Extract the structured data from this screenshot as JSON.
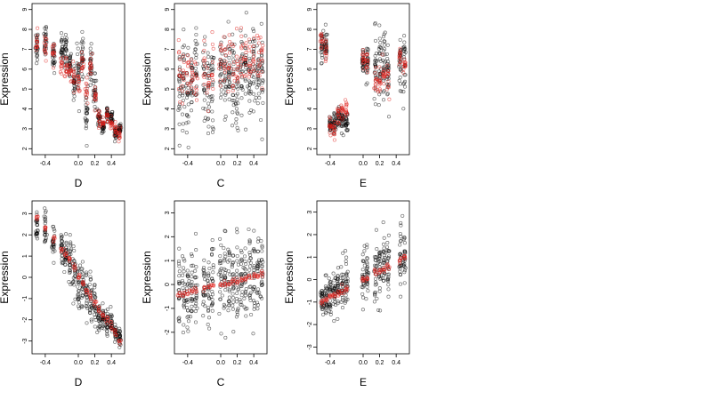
{
  "chart_data": [
    {
      "type": "scatter",
      "xlabel": "D",
      "ylabel": "Expression",
      "xlim": [
        -0.56,
        0.56
      ],
      "ylim": [
        1.7,
        9.3
      ],
      "xticks": [
        -0.4,
        0.0,
        0.2,
        0.4
      ],
      "yticks": [
        2,
        3,
        4,
        5,
        6,
        7,
        8,
        9
      ],
      "xcats": [
        -0.5,
        -0.4,
        -0.3,
        -0.2,
        -0.15,
        -0.1,
        -0.05,
        0.0,
        0.05,
        0.1,
        0.15,
        0.2,
        0.25,
        0.3,
        0.35,
        0.4,
        0.45,
        0.5
      ],
      "series": [
        {
          "color": "#000000",
          "y": [
            7.2,
            7.5,
            6.6,
            7.0,
            6.9,
            6.1,
            5.4,
            5.8,
            6.5,
            3.9,
            6.3,
            4.9,
            3.5,
            3.1,
            3.8,
            3.5,
            2.8,
            3.0
          ],
          "spread": [
            0.8,
            0.7,
            0.7,
            0.7,
            0.8,
            0.8,
            0.8,
            1.0,
            0.9,
            1.1,
            1.0,
            1.0,
            0.4,
            0.3,
            0.4,
            0.4,
            0.3,
            0.3
          ],
          "n": 25
        },
        {
          "color": "#e0201b",
          "y": [
            7.4,
            7.2,
            6.8,
            6.4,
            6.1,
            5.8,
            5.6,
            5.2,
            6.3,
            4.8,
            6.1,
            4.6,
            3.5,
            3.3,
            3.6,
            3.3,
            3.0,
            2.7
          ],
          "spread": [
            0.5,
            0.5,
            0.6,
            0.6,
            0.6,
            0.6,
            0.6,
            0.6,
            0.6,
            0.6,
            0.6,
            0.6,
            0.4,
            0.3,
            0.4,
            0.3,
            0.4,
            0.5
          ],
          "n": 12
        }
      ]
    },
    {
      "type": "scatter",
      "xlabel": "C",
      "ylabel": "Expression",
      "xlim": [
        -0.56,
        0.56
      ],
      "ylim": [
        1.7,
        9.3
      ],
      "xticks": [
        -0.4,
        0.0,
        0.2,
        0.4
      ],
      "yticks": [
        2,
        3,
        4,
        5,
        6,
        7,
        8,
        9
      ],
      "xcats": [
        -0.5,
        -0.45,
        -0.4,
        -0.35,
        -0.3,
        -0.2,
        -0.15,
        -0.1,
        0.0,
        0.05,
        0.1,
        0.15,
        0.2,
        0.25,
        0.3,
        0.35,
        0.4,
        0.45,
        0.5
      ],
      "series": [
        {
          "color": "#000000",
          "y": [
            5.2,
            5.5,
            4.8,
            5.0,
            5.6,
            5.3,
            4.8,
            5.1,
            5.9,
            5.8,
            6.0,
            5.5,
            4.9,
            5.7,
            6.1,
            5.6,
            6.2,
            6.0,
            6.4
          ],
          "spread": [
            1.9,
            1.9,
            1.9,
            1.9,
            1.9,
            1.9,
            1.9,
            1.9,
            1.9,
            1.9,
            1.9,
            1.9,
            1.9,
            1.9,
            1.9,
            1.9,
            1.9,
            1.9,
            1.9
          ],
          "n": 22
        },
        {
          "color": "#e0201b",
          "y": [
            5.6,
            5.8,
            5.5,
            5.9,
            5.7,
            6.0,
            5.6,
            5.9,
            6.1,
            6.2,
            6.3,
            6.2,
            6.1,
            6.4,
            6.5,
            6.3,
            6.6,
            6.5,
            6.8
          ],
          "spread": [
            1.3,
            1.3,
            1.3,
            1.3,
            1.3,
            1.3,
            1.3,
            1.3,
            1.3,
            1.3,
            1.3,
            1.3,
            1.3,
            1.3,
            1.3,
            1.3,
            1.3,
            1.3,
            1.3
          ],
          "n": 10
        }
      ]
    },
    {
      "type": "scatter",
      "xlabel": "E",
      "ylabel": "Expression",
      "xlim": [
        -0.56,
        0.56
      ],
      "ylim": [
        1.7,
        9.3
      ],
      "xticks": [
        -0.4,
        0.0,
        0.2,
        0.4
      ],
      "yticks": [
        2,
        3,
        4,
        5,
        6,
        7,
        8,
        9
      ],
      "xcats": [
        -0.5,
        -0.45,
        -0.4,
        -0.35,
        -0.3,
        -0.25,
        -0.2,
        0.0,
        0.05,
        0.15,
        0.2,
        0.25,
        0.3,
        0.45,
        0.5
      ],
      "series": [
        {
          "color": "#000000",
          "y": [
            7.3,
            7.1,
            3.2,
            3.3,
            3.5,
            3.5,
            3.3,
            6.4,
            6.2,
            5.8,
            5.9,
            6.3,
            5.6,
            6.5,
            6.2
          ],
          "spread": [
            0.7,
            0.7,
            0.4,
            0.4,
            0.5,
            0.5,
            0.4,
            0.7,
            0.7,
            1.6,
            1.6,
            1.4,
            1.4,
            1.2,
            1.2
          ],
          "n": 25
        },
        {
          "color": "#e0201b",
          "y": [
            7.5,
            6.9,
            3.0,
            3.3,
            3.6,
            3.8,
            4.0,
            6.5,
            6.4,
            5.6,
            5.4,
            5.8,
            5.6,
            6.6,
            6.3
          ],
          "spread": [
            0.5,
            0.5,
            0.6,
            0.6,
            0.6,
            0.6,
            0.6,
            0.5,
            0.5,
            0.6,
            0.6,
            0.6,
            0.6,
            0.5,
            0.5
          ],
          "n": 12
        }
      ]
    },
    {
      "type": "scatter",
      "xlabel": "D",
      "ylabel": "Expression",
      "xlim": [
        -0.56,
        0.56
      ],
      "ylim": [
        -3.6,
        3.6
      ],
      "xticks": [
        -0.4,
        0.0,
        0.2,
        0.4
      ],
      "yticks": [
        -3,
        -2,
        -1,
        0,
        1,
        2,
        3
      ],
      "xcats": [
        -0.5,
        -0.4,
        -0.3,
        -0.2,
        -0.15,
        -0.1,
        -0.05,
        0.0,
        0.05,
        0.1,
        0.15,
        0.2,
        0.25,
        0.3,
        0.35,
        0.4,
        0.45,
        0.5
      ],
      "series": [
        {
          "color": "#000000",
          "y": [
            2.4,
            2.2,
            1.7,
            1.3,
            1.0,
            0.7,
            0.3,
            -0.4,
            -0.3,
            -0.8,
            -1.1,
            -1.5,
            -1.8,
            -2.0,
            -2.2,
            -2.3,
            -2.6,
            -2.8
          ],
          "spread": [
            0.7,
            0.7,
            0.8,
            0.8,
            0.9,
            0.9,
            1.0,
            1.1,
            1.0,
            1.0,
            1.0,
            1.0,
            0.6,
            0.5,
            0.5,
            0.5,
            0.4,
            0.4
          ],
          "n": 24
        },
        {
          "color": "#e0201b",
          "y": [
            2.8,
            2.3,
            1.8,
            1.3,
            1.0,
            0.8,
            0.5,
            0.0,
            -0.3,
            -0.6,
            -0.9,
            -1.2,
            -1.5,
            -1.8,
            -2.0,
            -2.3,
            -2.6,
            -3.0
          ],
          "spread": [
            0.15,
            0.15,
            0.15,
            0.15,
            0.15,
            0.15,
            0.15,
            0.15,
            0.15,
            0.15,
            0.15,
            0.15,
            0.15,
            0.15,
            0.15,
            0.15,
            0.15,
            0.15
          ],
          "n": 6
        }
      ]
    },
    {
      "type": "scatter",
      "xlabel": "C",
      "ylabel": "Expression",
      "xlim": [
        -0.56,
        0.56
      ],
      "ylim": [
        -2.9,
        3.5
      ],
      "xticks": [
        -0.4,
        0.0,
        0.2,
        0.4
      ],
      "yticks": [
        -2,
        -1,
        0,
        1,
        2,
        3
      ],
      "xcats": [
        -0.5,
        -0.45,
        -0.4,
        -0.35,
        -0.3,
        -0.2,
        -0.15,
        -0.1,
        0.0,
        0.05,
        0.1,
        0.15,
        0.2,
        0.25,
        0.3,
        0.35,
        0.4,
        0.45,
        0.5
      ],
      "series": [
        {
          "color": "#000000",
          "y": [
            -0.3,
            -0.2,
            -0.4,
            -0.1,
            0.0,
            0.0,
            -0.2,
            0.1,
            -0.1,
            0.2,
            0.1,
            0.0,
            0.2,
            0.3,
            0.2,
            0.4,
            0.3,
            0.5,
            0.6
          ],
          "spread": [
            1.5,
            1.5,
            1.5,
            1.5,
            1.5,
            1.5,
            1.5,
            1.5,
            1.5,
            1.5,
            1.5,
            1.5,
            1.5,
            1.5,
            1.5,
            1.5,
            1.5,
            1.5,
            1.5
          ],
          "n": 22
        },
        {
          "color": "#e0201b",
          "y": [
            -0.4,
            -0.35,
            -0.3,
            -0.25,
            -0.2,
            -0.15,
            -0.1,
            -0.05,
            0.0,
            0.05,
            0.1,
            0.15,
            0.15,
            0.2,
            0.25,
            0.3,
            0.35,
            0.4,
            0.45
          ],
          "spread": [
            0.12,
            0.12,
            0.12,
            0.12,
            0.12,
            0.12,
            0.12,
            0.12,
            0.12,
            0.12,
            0.12,
            0.12,
            0.12,
            0.12,
            0.12,
            0.12,
            0.12,
            0.12,
            0.12
          ],
          "n": 5
        }
      ]
    },
    {
      "type": "scatter",
      "xlabel": "E",
      "ylabel": "Expression",
      "xlim": [
        -0.56,
        0.56
      ],
      "ylim": [
        -3.3,
        3.5
      ],
      "xticks": [
        -0.4,
        0.0,
        0.2,
        0.4
      ],
      "yticks": [
        -3,
        -2,
        -1,
        0,
        1,
        2,
        3
      ],
      "xcats": [
        -0.5,
        -0.45,
        -0.4,
        -0.35,
        -0.3,
        -0.25,
        -0.2,
        0.0,
        0.05,
        0.15,
        0.2,
        0.25,
        0.3,
        0.45,
        0.5
      ],
      "series": [
        {
          "color": "#000000",
          "y": [
            -1.0,
            -0.8,
            -0.7,
            -0.6,
            -0.4,
            -0.3,
            -0.3,
            0.2,
            0.3,
            0.4,
            0.5,
            0.6,
            0.7,
            0.9,
            1.0
          ],
          "spread": [
            0.8,
            0.8,
            0.9,
            0.9,
            0.9,
            0.9,
            0.9,
            1.0,
            1.0,
            1.4,
            1.4,
            1.3,
            1.3,
            1.3,
            1.3
          ],
          "n": 25
        },
        {
          "color": "#e0201b",
          "y": [
            -1.0,
            -0.9,
            -0.8,
            -0.7,
            -0.6,
            -0.5,
            -0.4,
            0.0,
            0.1,
            0.3,
            0.4,
            0.5,
            0.6,
            0.9,
            1.0
          ],
          "spread": [
            0.12,
            0.12,
            0.12,
            0.12,
            0.12,
            0.12,
            0.12,
            0.12,
            0.12,
            0.12,
            0.12,
            0.12,
            0.12,
            0.12,
            0.12
          ],
          "n": 6
        }
      ]
    }
  ]
}
